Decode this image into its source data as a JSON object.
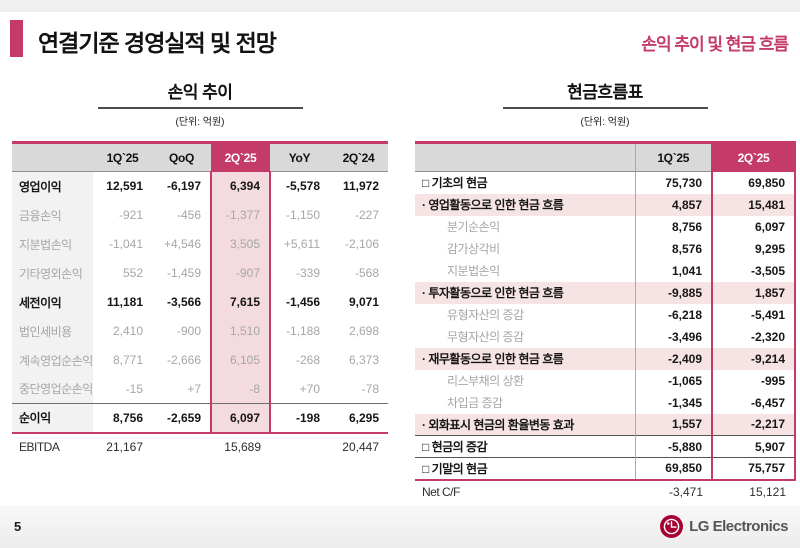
{
  "header": {
    "title": "연결기준 경영실적 및 전망",
    "subtitle": "손익 추이 및 현금 흐름"
  },
  "income_table": {
    "title": "손익 추이",
    "unit": "(단위: 억원)",
    "columns": [
      "",
      "1Q`25",
      "QoQ",
      "2Q`25",
      "YoY",
      "2Q`24"
    ],
    "highlight_column": "2Q`25",
    "rows": [
      {
        "label": "영업이익",
        "style": "bold",
        "values": [
          "12,591",
          "-6,197",
          "6,394",
          "-5,578",
          "11,972"
        ]
      },
      {
        "label": "금융손익",
        "style": "sub",
        "values": [
          "-921",
          "-456",
          "-1,377",
          "-1,150",
          "-227"
        ]
      },
      {
        "label": "지분법손익",
        "style": "sub",
        "values": [
          "-1,041",
          "+4,546",
          "3,505",
          "+5,611",
          "-2,106"
        ]
      },
      {
        "label": "기타영외손익",
        "style": "sub",
        "values": [
          "552",
          "-1,459",
          "-907",
          "-339",
          "-568"
        ]
      },
      {
        "label": "세전이익",
        "style": "bold",
        "values": [
          "11,181",
          "-3,566",
          "7,615",
          "-1,456",
          "9,071"
        ]
      },
      {
        "label": "법인세비용",
        "style": "sub",
        "values": [
          "2,410",
          "-900",
          "1,510",
          "-1,188",
          "2,698"
        ]
      },
      {
        "label": "계속영업순손익",
        "style": "sub",
        "values": [
          "8,771",
          "-2,666",
          "6,105",
          "-268",
          "6,373"
        ]
      },
      {
        "label": "중단영업순손익",
        "style": "sub",
        "values": [
          "-15",
          "+7",
          "-8",
          "+70",
          "-78"
        ]
      },
      {
        "label": "순이익",
        "style": "total",
        "values": [
          "8,756",
          "-2,659",
          "6,097",
          "-198",
          "6,295"
        ]
      }
    ],
    "footer_row": {
      "label": "EBITDA",
      "values": [
        "21,167",
        "",
        "15,689",
        "",
        "20,447"
      ]
    }
  },
  "cashflow_table": {
    "title": "현금흐름표",
    "unit": "(단위: 억원)",
    "columns": [
      "",
      "1Q`25",
      "2Q`25"
    ],
    "highlight_column": "2Q`25",
    "rows": [
      {
        "label": "□ 기초의 현금",
        "style": "bold",
        "values": [
          "75,730",
          "69,850"
        ]
      },
      {
        "label": "· 영업활동으로 인한 현금 흐름",
        "style": "section",
        "values": [
          "4,857",
          "15,481"
        ]
      },
      {
        "label": "분기순손익",
        "style": "sub",
        "values": [
          "8,756",
          "6,097"
        ]
      },
      {
        "label": "감가상각비",
        "style": "sub",
        "values": [
          "8,576",
          "9,295"
        ]
      },
      {
        "label": "지분법손익",
        "style": "sub",
        "values": [
          "1,041",
          "-3,505"
        ]
      },
      {
        "label": "· 투자활동으로 인한 현금 흐름",
        "style": "section",
        "values": [
          "-9,885",
          "1,857"
        ]
      },
      {
        "label": "유형자산의 증감",
        "style": "sub",
        "values": [
          "-6,218",
          "-5,491"
        ]
      },
      {
        "label": "무형자산의 증감",
        "style": "sub",
        "values": [
          "-3,496",
          "-2,320"
        ]
      },
      {
        "label": "· 재무활동으로 인한 현금 흐름",
        "style": "section",
        "values": [
          "-2,409",
          "-9,214"
        ]
      },
      {
        "label": "리스부채의 상환",
        "style": "sub",
        "values": [
          "-1,065",
          "-995"
        ]
      },
      {
        "label": "차입금 증감",
        "style": "sub",
        "values": [
          "-1,345",
          "-6,457"
        ]
      },
      {
        "label": "· 외화표시 현금의 환율변동 효과",
        "style": "section",
        "values": [
          "1,557",
          "-2,217"
        ]
      },
      {
        "label": "□ 현금의 증감",
        "style": "total",
        "values": [
          "-5,880",
          "5,907"
        ]
      },
      {
        "label": "□ 기말의 현금",
        "style": "total",
        "values": [
          "69,850",
          "75,757"
        ]
      }
    ],
    "footer_row": {
      "label": "Net C/F",
      "values": [
        "-3,471",
        "15,121"
      ]
    }
  },
  "footer": {
    "page": "5",
    "logo_text": "LG Electronics"
  },
  "colors": {
    "accent": "#C43A68",
    "highlight_column_bg": "#F3DBDF",
    "highlight_row_bg": "#F6E3E3",
    "header_gray": "#D9D9D9",
    "label_gray": "#F2F2F2",
    "sub_text_gray": "#A6A6A6",
    "lg_red": "#A50034"
  }
}
